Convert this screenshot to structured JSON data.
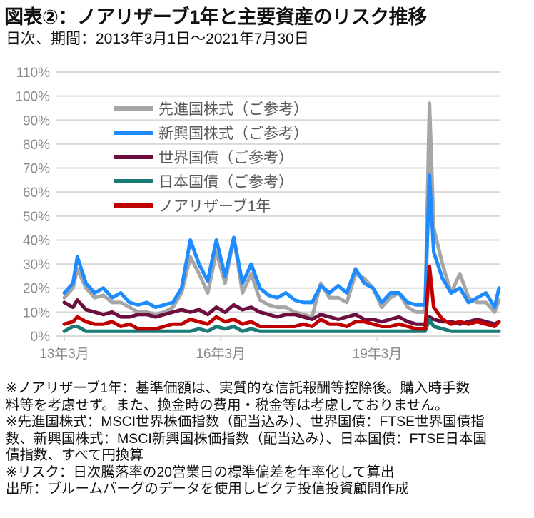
{
  "title": "図表②：ノアリザーブ1年と主要資産のリスク推移",
  "subtitle": "日次、期間：2013年3月1日～2021年7月30日",
  "chart_data": {
    "type": "line",
    "title": "図表②：ノアリザーブ1年と主要資産のリスク推移",
    "subtitle": "日次、期間：2013年3月1日～2021年7月30日",
    "xlabel": "",
    "ylabel": "",
    "ylim": [
      0,
      110
    ],
    "y_ticks": [
      "0%",
      "10%",
      "20%",
      "30%",
      "40%",
      "50%",
      "60%",
      "70%",
      "80%",
      "90%",
      "100%",
      "110%"
    ],
    "x_ticks": [
      {
        "label": "13年3月",
        "date": "2013-03"
      },
      {
        "label": "16年3月",
        "date": "2016-03"
      },
      {
        "label": "19年3月",
        "date": "2019-03"
      }
    ],
    "xlim": [
      "2013-03",
      "2021-07"
    ],
    "grid": true,
    "legend_position": "top-left inside",
    "x": [
      "2013-03",
      "2013-05",
      "2013-06",
      "2013-08",
      "2013-10",
      "2013-12",
      "2014-02",
      "2014-04",
      "2014-06",
      "2014-08",
      "2014-10",
      "2014-12",
      "2015-02",
      "2015-04",
      "2015-06",
      "2015-08",
      "2015-10",
      "2015-12",
      "2016-02",
      "2016-04",
      "2016-06",
      "2016-08",
      "2016-10",
      "2016-12",
      "2017-02",
      "2017-04",
      "2017-06",
      "2017-08",
      "2017-10",
      "2017-12",
      "2018-02",
      "2018-04",
      "2018-06",
      "2018-08",
      "2018-10",
      "2018-12",
      "2019-02",
      "2019-04",
      "2019-06",
      "2019-08",
      "2019-10",
      "2019-12",
      "2020-02",
      "2020-03",
      "2020-04",
      "2020-06",
      "2020-08",
      "2020-10",
      "2020-12",
      "2021-02",
      "2021-04",
      "2021-06",
      "2021-07"
    ],
    "series": [
      {
        "name": "先進国株式（ご参考）",
        "color": "#a6a6a6",
        "values": [
          16,
          20,
          28,
          20,
          16,
          17,
          14,
          14,
          12,
          10,
          10,
          9,
          10,
          12,
          18,
          33,
          26,
          18,
          35,
          22,
          41,
          18,
          26,
          15,
          13,
          12,
          12,
          10,
          9,
          8,
          22,
          16,
          16,
          14,
          26,
          24,
          20,
          12,
          16,
          18,
          12,
          10,
          10,
          97,
          45,
          30,
          18,
          26,
          16,
          14,
          14,
          10,
          15
        ]
      },
      {
        "name": "新興国株式（ご参考）",
        "color": "#1e8cff",
        "values": [
          18,
          22,
          33,
          22,
          18,
          20,
          16,
          18,
          14,
          13,
          14,
          12,
          13,
          14,
          20,
          40,
          30,
          23,
          40,
          25,
          41,
          22,
          30,
          20,
          17,
          16,
          18,
          15,
          14,
          14,
          21,
          18,
          21,
          18,
          28,
          22,
          20,
          14,
          18,
          18,
          14,
          13,
          13,
          67,
          35,
          24,
          18,
          20,
          14,
          16,
          18,
          12,
          20
        ]
      },
      {
        "name": "世界国債（ご参考）",
        "color": "#6b0f3f",
        "values": [
          14,
          12,
          15,
          11,
          10,
          9,
          10,
          8,
          8,
          9,
          9,
          8,
          9,
          10,
          11,
          10,
          11,
          9,
          12,
          10,
          13,
          11,
          12,
          10,
          9,
          8,
          9,
          9,
          8,
          7,
          9,
          8,
          7,
          8,
          9,
          7,
          7,
          6,
          7,
          8,
          6,
          5,
          5,
          8,
          7,
          6,
          6,
          5,
          6,
          7,
          6,
          5,
          6
        ]
      },
      {
        "name": "日本国債（ご参考）",
        "color": "#1a7a78",
        "values": [
          2,
          4,
          4,
          2,
          2,
          2,
          2,
          2,
          2,
          2,
          2,
          2,
          2,
          2,
          2,
          2,
          3,
          2,
          4,
          3,
          4,
          2,
          3,
          2,
          2,
          2,
          2,
          2,
          2,
          2,
          2,
          2,
          2,
          2,
          2,
          2,
          2,
          2,
          2,
          2,
          2,
          2,
          2,
          7,
          4,
          3,
          2,
          2,
          2,
          2,
          2,
          2,
          2
        ]
      },
      {
        "name": "ノアリザーブ1年",
        "color": "#c00000",
        "values": [
          5,
          6,
          8,
          6,
          5,
          5,
          6,
          4,
          5,
          3,
          3,
          3,
          4,
          5,
          5,
          7,
          6,
          5,
          8,
          6,
          7,
          5,
          6,
          4,
          4,
          4,
          4,
          4,
          5,
          4,
          7,
          5,
          5,
          4,
          6,
          6,
          5,
          4,
          4,
          5,
          4,
          3,
          3,
          29,
          12,
          7,
          5,
          6,
          5,
          6,
          5,
          4,
          6
        ]
      }
    ]
  },
  "notes": [
    "※ノアリザーブ1年：基準価額は、実質的な信託報酬等控除後。購入時手数",
    "料等を考慮せず。また、換金時の費用・税金等は考慮しておりません。",
    "※先進国株式：MSCI世界株価指数（配当込み）、世界国債：FTSE世界国債指",
    "数、新興国株式：MSCI新興国株価指数（配当込み）、日本国債：FTSE日本国",
    "債指数、すべて円換算",
    "※リスク：日次騰落率の20営業日の標準偏差を年率化して算出",
    "出所：ブルームバーグのデータを使用しピクテ投信投資顧問作成"
  ]
}
